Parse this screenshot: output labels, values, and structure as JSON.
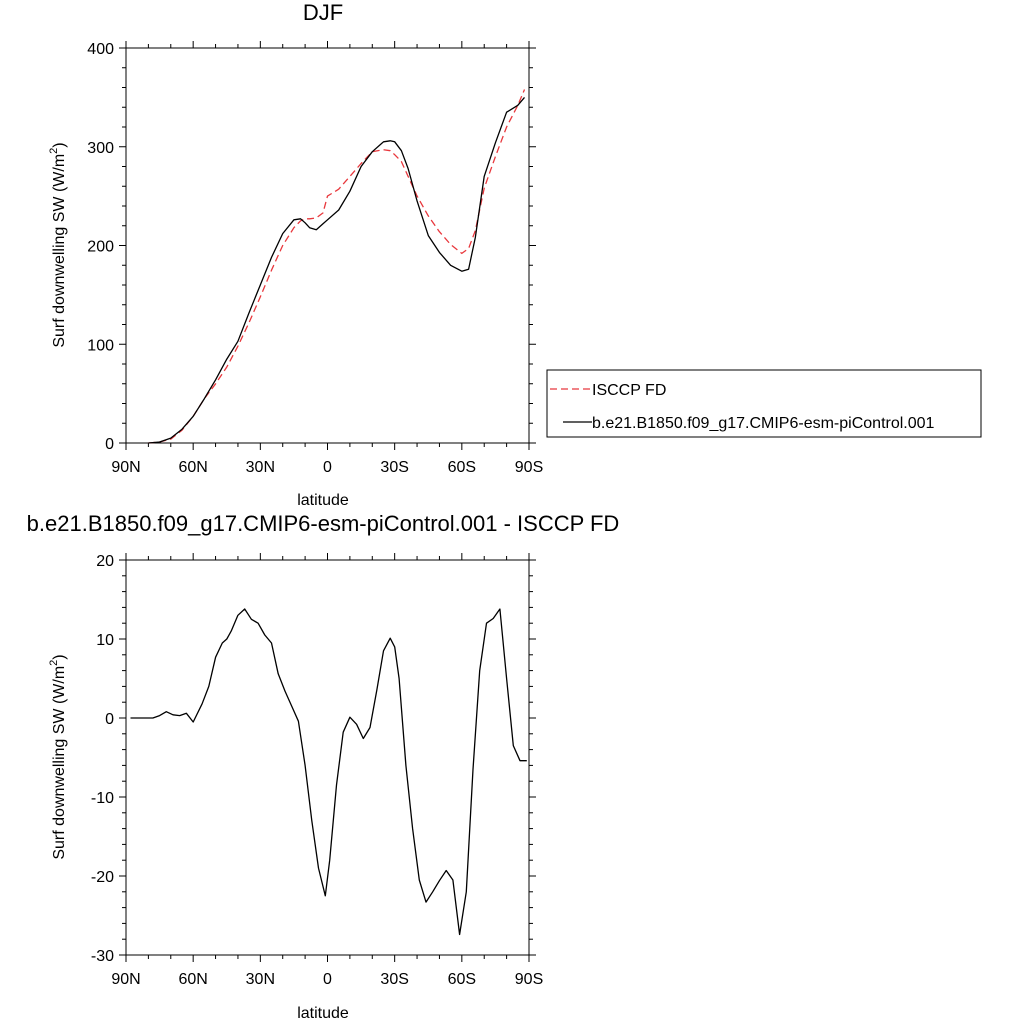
{
  "chart_data": [
    {
      "type": "line",
      "title": "DJF",
      "xlabel": "latitude",
      "ylabel": "Surf downwelling SW (W/m",
      "ylabel_sup": "2",
      "ylabel_end": ")",
      "xlim": [
        -90,
        90
      ],
      "ylim": [
        0,
        400
      ],
      "x_ticks": [
        -90,
        -60,
        -30,
        0,
        30,
        60,
        90
      ],
      "x_tick_labels": [
        "90N",
        "60N",
        "30N",
        "0",
        "30S",
        "60S",
        "90S"
      ],
      "y_ticks": [
        0,
        100,
        200,
        300,
        400
      ],
      "y_tick_labels": [
        "0",
        "100",
        "200",
        "300",
        "400"
      ],
      "grid": false,
      "legend_position": "right",
      "series": [
        {
          "name": "ISCCP FD",
          "color": "#e8383d",
          "dash": "dashed",
          "x": [
            -80,
            -75,
            -70,
            -65,
            -60,
            -55,
            -50,
            -45,
            -40,
            -35,
            -30,
            -25,
            -20,
            -15,
            -12,
            -10,
            -8,
            -5,
            -2,
            0,
            5,
            10,
            15,
            20,
            25,
            28,
            30,
            33,
            36,
            40,
            45,
            50,
            55,
            60,
            63,
            66,
            70,
            75,
            80,
            85,
            88
          ],
          "y": [
            0,
            1,
            4,
            13,
            27,
            45,
            60,
            77,
            98,
            122,
            148,
            175,
            200,
            218,
            225,
            227,
            227,
            228,
            233,
            250,
            257,
            270,
            283,
            295,
            297,
            296,
            292,
            285,
            270,
            250,
            230,
            214,
            201,
            192,
            197,
            215,
            258,
            290,
            320,
            342,
            358
          ]
        },
        {
          "name": "b.e21.B1850.f09_g17.CMIP6-esm-piControl.001",
          "color": "#000000",
          "dash": "solid",
          "x": [
            -80,
            -75,
            -70,
            -65,
            -60,
            -55,
            -50,
            -45,
            -40,
            -35,
            -30,
            -25,
            -20,
            -15,
            -12,
            -10,
            -8,
            -5,
            -2,
            0,
            5,
            10,
            15,
            20,
            25,
            28,
            30,
            33,
            36,
            40,
            45,
            50,
            55,
            60,
            63,
            66,
            70,
            75,
            80,
            85,
            88
          ],
          "y": [
            0,
            1,
            5,
            14,
            27,
            45,
            64,
            85,
            103,
            132,
            160,
            188,
            212,
            226,
            227,
            223,
            218,
            216,
            222,
            226,
            236,
            255,
            280,
            295,
            305,
            306,
            305,
            296,
            278,
            245,
            210,
            193,
            180,
            174,
            176,
            208,
            270,
            304,
            335,
            342,
            350
          ]
        }
      ]
    },
    {
      "type": "line",
      "title": "b.e21.B1850.f09_g17.CMIP6-esm-piControl.001 - ISCCP FD",
      "xlabel": "latitude",
      "ylabel": "Surf downwelling SW (W/m",
      "ylabel_sup": "2",
      "ylabel_end": ")",
      "xlim": [
        -90,
        90
      ],
      "ylim": [
        -30,
        20
      ],
      "x_ticks": [
        -90,
        -60,
        -30,
        0,
        30,
        60,
        90
      ],
      "x_tick_labels": [
        "90N",
        "60N",
        "30N",
        "0",
        "30S",
        "60S",
        "90S"
      ],
      "y_ticks": [
        -30,
        -20,
        -10,
        0,
        10,
        20
      ],
      "y_tick_labels": [
        "-30",
        "-20",
        "-10",
        "0",
        "10",
        "20"
      ],
      "grid": false,
      "series": [
        {
          "color": "#000000",
          "dash": "solid",
          "x": [
            -88,
            -83,
            -78,
            -75,
            -72,
            -69,
            -66,
            -63,
            -60,
            -56,
            -53,
            -50,
            -47,
            -45,
            -43,
            -40,
            -37,
            -34,
            -31,
            -28,
            -25,
            -22,
            -19,
            -16,
            -13,
            -10,
            -7,
            -4,
            -1,
            1,
            4,
            7,
            10,
            13,
            16,
            19,
            22,
            25,
            28,
            30,
            32,
            35,
            38,
            41,
            44,
            47,
            50,
            53,
            56,
            59,
            62,
            65,
            68,
            71,
            74,
            77,
            80,
            83,
            86,
            89
          ],
          "y": [
            0,
            0,
            0,
            0.3,
            0.8,
            0.4,
            0.3,
            0.6,
            -0.5,
            1.8,
            4,
            7.7,
            9.5,
            10,
            11,
            13,
            13.8,
            12.5,
            12,
            10.5,
            9.5,
            5.6,
            3.4,
            1.5,
            -0.4,
            -6,
            -13,
            -19,
            -22.5,
            -18,
            -8.5,
            -1.8,
            0.1,
            -0.8,
            -2.6,
            -1.2,
            3.5,
            8.5,
            10.1,
            9,
            5,
            -6,
            -14,
            -20.5,
            -23.3,
            -22,
            -20.6,
            -19.3,
            -20.5,
            -27.4,
            -22,
            -6.5,
            6,
            12,
            12.6,
            13.8,
            5,
            -3.5,
            -5.4,
            -5.4
          ]
        }
      ]
    }
  ],
  "legend": {
    "entries": [
      {
        "label": "ISCCP FD",
        "color": "#e8383d",
        "dash": "dashed"
      },
      {
        "label": "b.e21.B1850.f09_g17.CMIP6-esm-piControl.001",
        "color": "#000000",
        "dash": "solid"
      }
    ]
  }
}
